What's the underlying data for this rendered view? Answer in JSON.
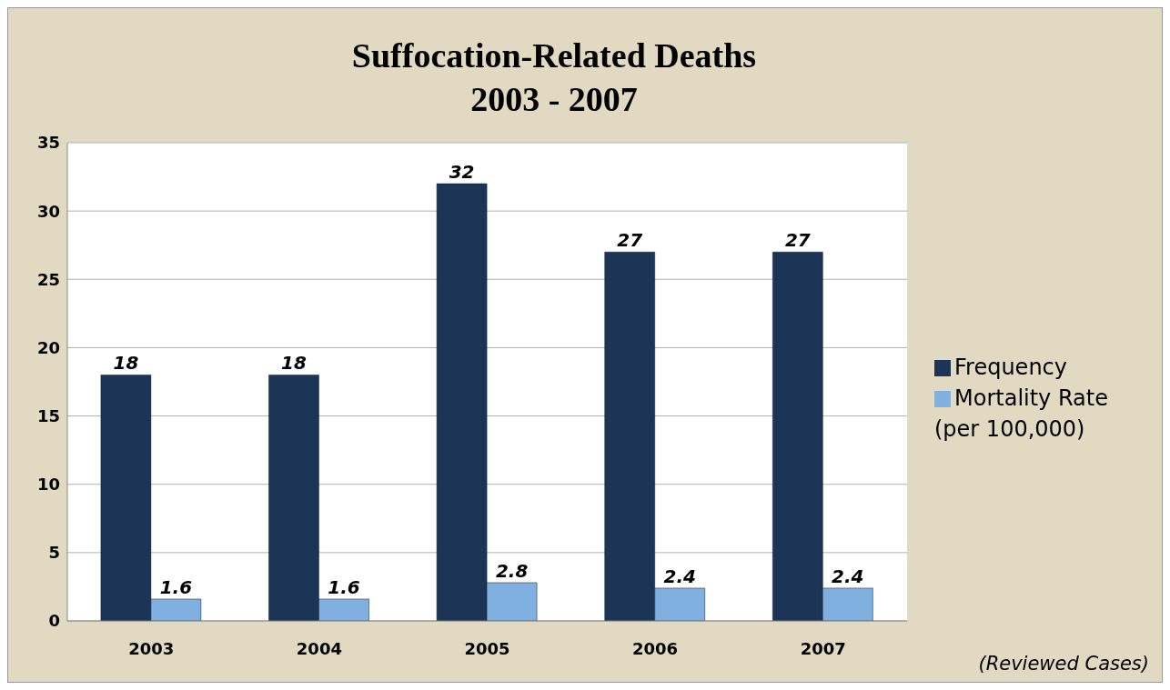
{
  "chart_data": {
    "type": "bar",
    "title": "Suffocation-Related Deaths\n2003 - 2007",
    "categories": [
      "2003",
      "2004",
      "2005",
      "2006",
      "2007"
    ],
    "series": [
      {
        "name": "Frequency",
        "color": "#1c3557",
        "values": [
          18,
          18,
          32,
          27,
          27
        ]
      },
      {
        "name": "Mortality Rate (per 100,000)",
        "color": "#7fb0e0",
        "values": [
          1.6,
          1.6,
          2.8,
          2.4,
          2.4
        ]
      }
    ],
    "ylim": [
      0,
      35
    ],
    "yticks": [
      0,
      5,
      10,
      15,
      20,
      25,
      30,
      35
    ],
    "grid": "y",
    "legend": "right",
    "data_labels": true,
    "annotations": [
      "(Reviewed Cases)"
    ]
  }
}
